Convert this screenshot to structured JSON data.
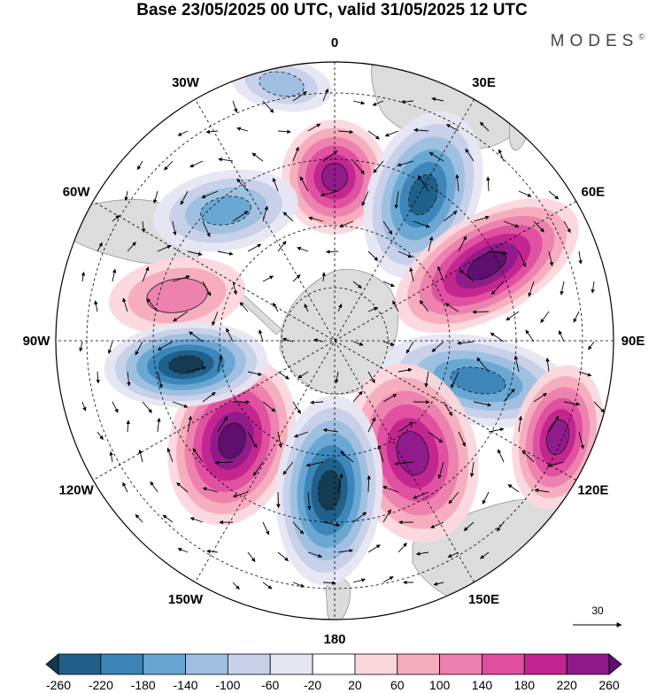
{
  "title": "Base 23/05/2025 00 UTC, valid 31/05/2025 12 UTC",
  "brand": {
    "name": "MODES",
    "mark": "©"
  },
  "map": {
    "projection": "south-polar-stereographic",
    "longitude_labels": [
      {
        "lon": 0,
        "text": "0"
      },
      {
        "lon": 30,
        "text": "30E"
      },
      {
        "lon": 60,
        "text": "60E"
      },
      {
        "lon": 90,
        "text": "90E"
      },
      {
        "lon": 120,
        "text": "120E"
      },
      {
        "lon": 150,
        "text": "150E"
      },
      {
        "lon": 180,
        "text": "180"
      },
      {
        "lon": -150,
        "text": "150W"
      },
      {
        "lon": -120,
        "text": "120W"
      },
      {
        "lon": -90,
        "text": "90W"
      },
      {
        "lon": -60,
        "text": "60W"
      },
      {
        "lon": -30,
        "text": "30W"
      }
    ],
    "land_color": "#dcdcdc",
    "ocean_color": "#ffffff",
    "anomaly_centers": [
      {
        "sign": "positive",
        "level": 220
      },
      {
        "sign": "negative",
        "level": -220
      },
      {
        "sign": "positive",
        "level": 260
      },
      {
        "sign": "negative",
        "level": -180
      },
      {
        "sign": "positive",
        "level": 100
      },
      {
        "sign": "positive",
        "level": 260
      },
      {
        "sign": "negative",
        "level": -260
      },
      {
        "sign": "positive",
        "level": 220
      },
      {
        "sign": "negative",
        "level": -260
      },
      {
        "sign": "positive",
        "level": 220
      },
      {
        "sign": "negative",
        "level": -140
      },
      {
        "sign": "negative",
        "level": -100
      }
    ],
    "vector_scale": {
      "label": "30"
    }
  },
  "colorbar": {
    "labels": [
      "-260",
      "-220",
      "-180",
      "-140",
      "-100",
      "-60",
      "-20",
      "20",
      "60",
      "100",
      "140",
      "180",
      "220",
      "260"
    ],
    "colors": [
      "#15394f",
      "#1f5f88",
      "#3a84b8",
      "#67a6d2",
      "#9ebfe0",
      "#c6d0e8",
      "#e6e6f3",
      "#ffffff",
      "#fbd7dc",
      "#f5acbd",
      "#ec7fae",
      "#df4ea0",
      "#c2248f",
      "#8e1a8a",
      "#5c0f6f"
    ]
  }
}
